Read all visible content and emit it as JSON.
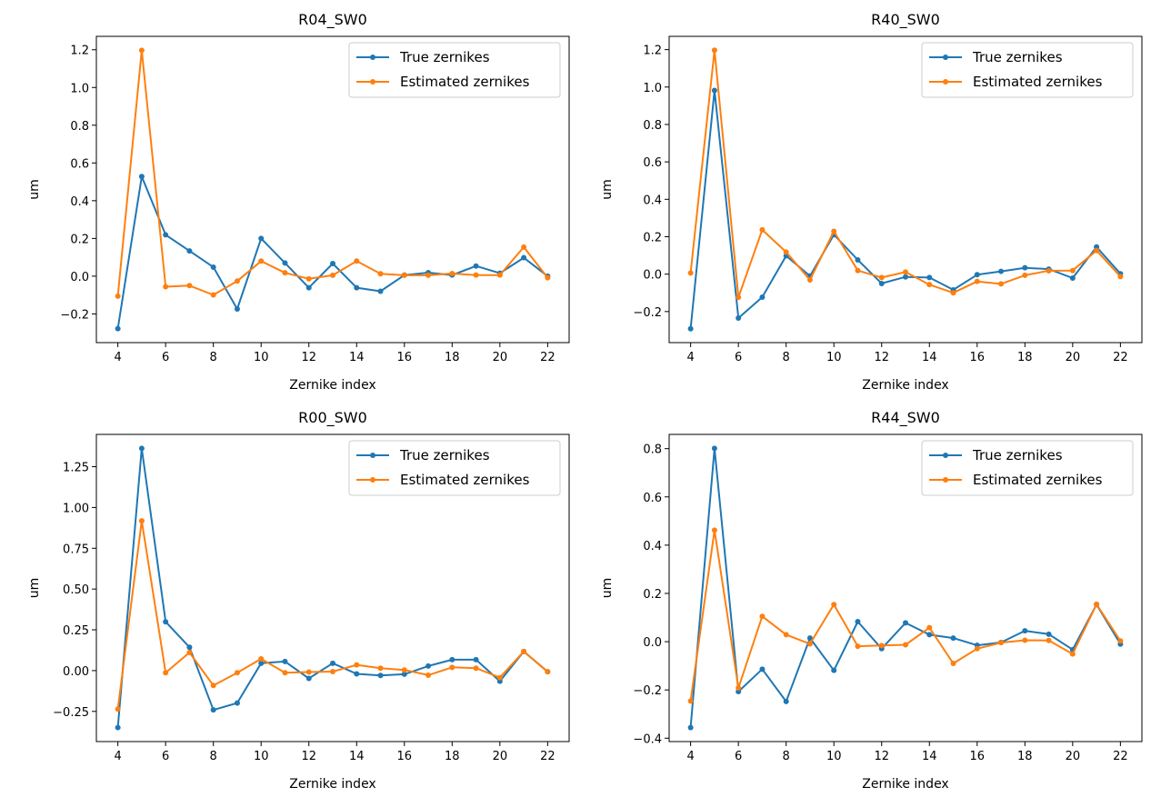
{
  "chart_data": [
    {
      "type": "line",
      "title": "R04_SW0",
      "xlabel": "Zernike index",
      "ylabel": "um",
      "x": [
        4,
        5,
        6,
        7,
        8,
        9,
        10,
        11,
        12,
        13,
        14,
        15,
        16,
        17,
        18,
        19,
        20,
        21,
        22
      ],
      "xticks": [
        4,
        6,
        8,
        10,
        12,
        14,
        16,
        18,
        20,
        22
      ],
      "yticks": [
        -0.2,
        0.0,
        0.2,
        0.4,
        0.6,
        0.8,
        1.0,
        1.2
      ],
      "ytick_decimals": 1,
      "xlim": [
        3.1,
        22.9
      ],
      "ylim": [
        -0.352,
        1.271
      ],
      "legend": "top-right",
      "grid": false,
      "series": [
        {
          "name": "True zernikes",
          "color": "#1f77b4",
          "values": [
            -0.278,
            0.528,
            0.219,
            0.134,
            0.048,
            -0.174,
            0.2,
            0.07,
            -0.061,
            0.067,
            -0.061,
            -0.08,
            0.006,
            0.019,
            0.006,
            0.054,
            0.016,
            0.098,
            0.0
          ]
        },
        {
          "name": "Estimated zernikes",
          "color": "#ff7f0e",
          "values": [
            -0.106,
            1.197,
            -0.056,
            -0.05,
            -0.099,
            -0.026,
            0.08,
            0.018,
            -0.014,
            0.005,
            0.08,
            0.013,
            0.005,
            0.005,
            0.014,
            0.006,
            0.006,
            0.154,
            -0.008
          ]
        }
      ]
    },
    {
      "type": "line",
      "title": "R40_SW0",
      "xlabel": "Zernike index",
      "ylabel": "um",
      "x": [
        4,
        5,
        6,
        7,
        8,
        9,
        10,
        11,
        12,
        13,
        14,
        15,
        16,
        17,
        18,
        19,
        20,
        21,
        22
      ],
      "xticks": [
        4,
        6,
        8,
        10,
        12,
        14,
        16,
        18,
        20,
        22
      ],
      "yticks": [
        -0.2,
        0.0,
        0.2,
        0.4,
        0.6,
        0.8,
        1.0,
        1.2
      ],
      "ytick_decimals": 1,
      "xlim": [
        3.1,
        22.9
      ],
      "ylim": [
        -0.366,
        1.271
      ],
      "legend": "top-right",
      "grid": false,
      "series": [
        {
          "name": "True zernikes",
          "color": "#1f77b4",
          "values": [
            -0.292,
            0.982,
            -0.235,
            -0.123,
            0.098,
            -0.01,
            0.211,
            0.076,
            -0.05,
            -0.015,
            -0.018,
            -0.084,
            -0.003,
            0.015,
            0.034,
            0.027,
            -0.021,
            0.145,
            0.002
          ]
        },
        {
          "name": "Estimated zernikes",
          "color": "#ff7f0e",
          "values": [
            0.006,
            1.197,
            -0.124,
            0.237,
            0.118,
            -0.031,
            0.229,
            0.019,
            -0.018,
            0.011,
            -0.056,
            -0.1,
            -0.039,
            -0.052,
            -0.006,
            0.018,
            0.019,
            0.126,
            -0.013
          ]
        }
      ]
    },
    {
      "type": "line",
      "title": "R00_SW0",
      "xlabel": "Zernike index",
      "ylabel": "um",
      "x": [
        4,
        5,
        6,
        7,
        8,
        9,
        10,
        11,
        12,
        13,
        14,
        15,
        16,
        17,
        18,
        19,
        20,
        21,
        22
      ],
      "xticks": [
        4,
        6,
        8,
        10,
        12,
        14,
        16,
        18,
        20,
        22
      ],
      "yticks": [
        -0.25,
        0.0,
        0.25,
        0.5,
        0.75,
        1.0,
        1.25
      ],
      "ytick_decimals": 2,
      "xlim": [
        3.1,
        22.9
      ],
      "ylim": [
        -0.435,
        1.448
      ],
      "legend": "top-right",
      "grid": false,
      "series": [
        {
          "name": "True zernikes",
          "color": "#1f77b4",
          "values": [
            -0.349,
            1.362,
            0.299,
            0.143,
            -0.241,
            -0.199,
            0.045,
            0.056,
            -0.048,
            0.045,
            -0.02,
            -0.03,
            -0.022,
            0.028,
            0.067,
            0.067,
            -0.065,
            0.117,
            -0.007
          ]
        },
        {
          "name": "Estimated zernikes",
          "color": "#ff7f0e",
          "values": [
            -0.236,
            0.918,
            -0.013,
            0.111,
            -0.091,
            -0.013,
            0.072,
            -0.013,
            -0.009,
            -0.006,
            0.035,
            0.015,
            0.004,
            -0.028,
            0.02,
            0.015,
            -0.043,
            0.117,
            -0.007
          ]
        }
      ]
    },
    {
      "type": "line",
      "title": "R44_SW0",
      "xlabel": "Zernike index",
      "ylabel": "um",
      "x": [
        4,
        5,
        6,
        7,
        8,
        9,
        10,
        11,
        12,
        13,
        14,
        15,
        16,
        17,
        18,
        19,
        20,
        21,
        22
      ],
      "xticks": [
        4,
        6,
        8,
        10,
        12,
        14,
        16,
        18,
        20,
        22
      ],
      "yticks": [
        -0.4,
        -0.2,
        0.0,
        0.2,
        0.4,
        0.6,
        0.8
      ],
      "ytick_decimals": 1,
      "xlim": [
        3.1,
        22.9
      ],
      "ylim": [
        -0.414,
        0.859
      ],
      "legend": "top-right",
      "grid": false,
      "series": [
        {
          "name": "True zernikes",
          "color": "#1f77b4",
          "values": [
            -0.356,
            0.801,
            -0.207,
            -0.114,
            -0.248,
            0.015,
            -0.119,
            0.083,
            -0.029,
            0.078,
            0.029,
            0.015,
            -0.015,
            -0.003,
            0.045,
            0.031,
            -0.033,
            0.154,
            -0.01
          ]
        },
        {
          "name": "Estimated zernikes",
          "color": "#ff7f0e",
          "values": [
            -0.246,
            0.462,
            -0.192,
            0.105,
            0.029,
            -0.009,
            0.154,
            -0.019,
            -0.016,
            -0.013,
            0.058,
            -0.09,
            -0.029,
            -0.004,
            0.006,
            0.005,
            -0.051,
            0.155,
            0.003
          ]
        }
      ]
    }
  ]
}
